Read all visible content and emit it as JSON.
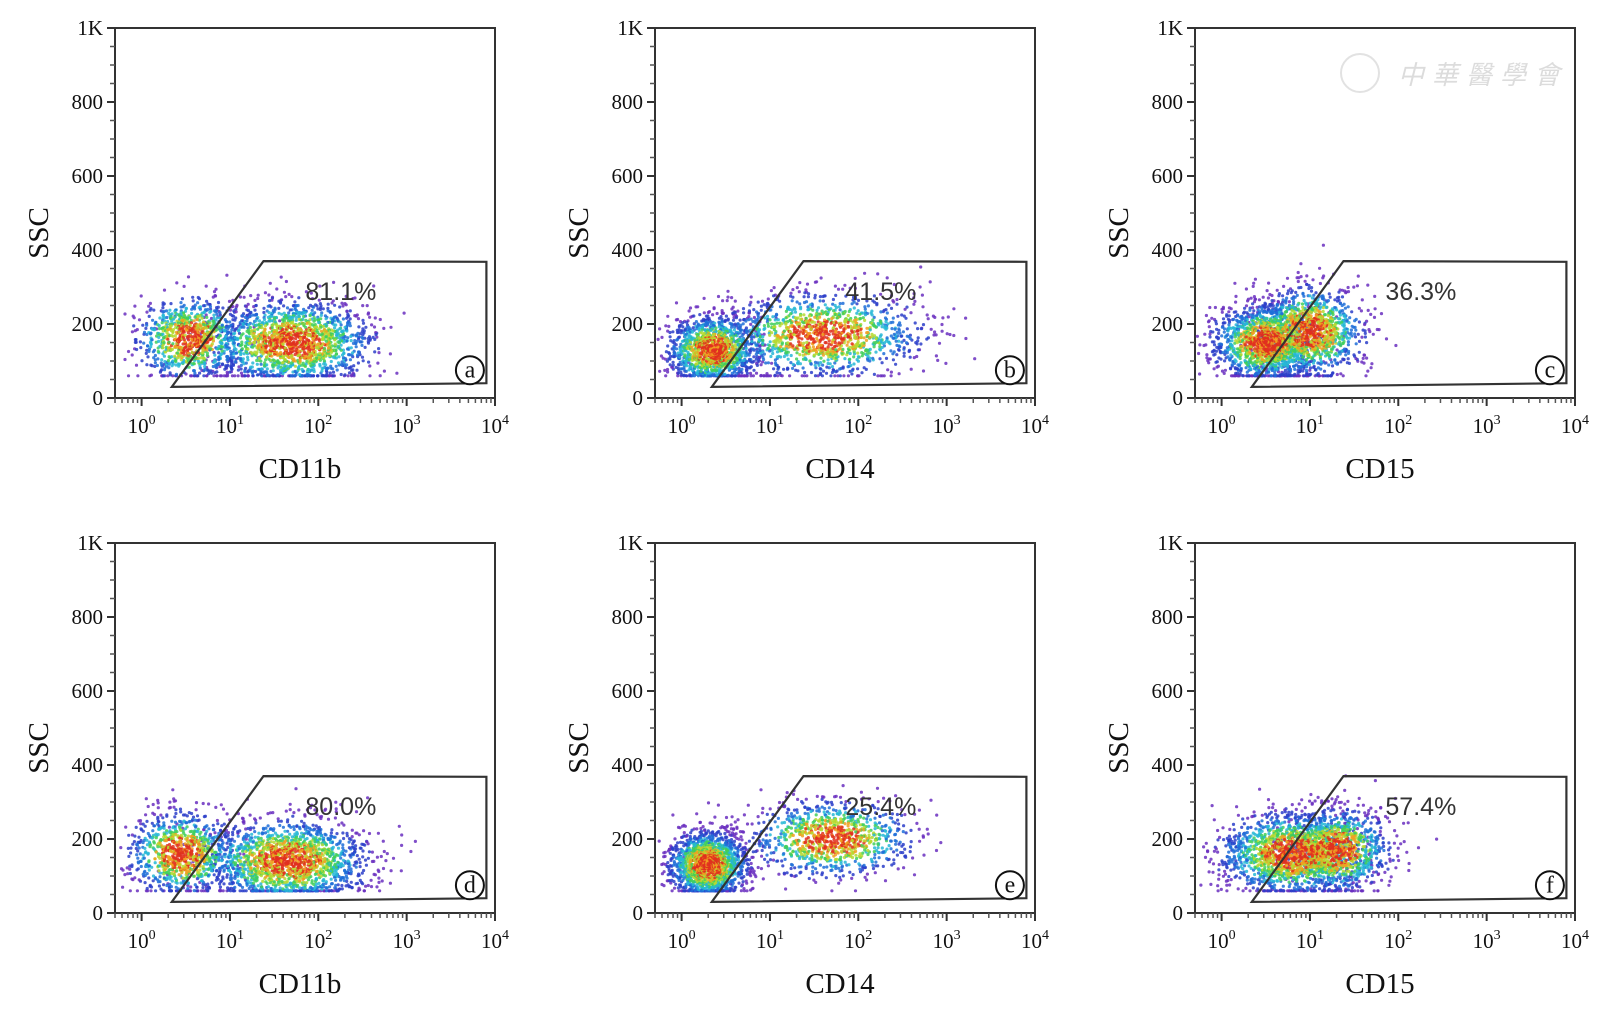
{
  "watermark": {
    "text": "中華醫學會",
    "icon": "society-seal-icon"
  },
  "chart_data": [
    {
      "type": "scatter",
      "panel_tag": "a",
      "xlabel": "CD11b",
      "ylabel": "SSC",
      "x_scale": "log",
      "xlim": [
        0.5,
        10000
      ],
      "ylim": [
        0,
        1000
      ],
      "x_tick_labels": [
        "10^0",
        "10^1",
        "10^2",
        "10^3",
        "10^4"
      ],
      "y_tick_labels": [
        "0",
        "200",
        "400",
        "600",
        "800",
        "1K"
      ],
      "gate": {
        "polygon": [
          [
            2.2,
            30
          ],
          [
            24,
            370
          ],
          [
            8000,
            368
          ],
          [
            8000,
            40
          ]
        ],
        "percent_label": "81.1%",
        "percent": 81.1
      },
      "clusters": [
        {
          "center_log10_x": 1.7,
          "center_y": 150,
          "spread_log10_x": 0.45,
          "spread_y": 55,
          "weight": 0.65
        },
        {
          "center_log10_x": 0.55,
          "center_y": 160,
          "spread_log10_x": 0.3,
          "spread_y": 55,
          "weight": 0.35
        }
      ]
    },
    {
      "type": "scatter",
      "panel_tag": "b",
      "xlabel": "CD14",
      "ylabel": "SSC",
      "x_scale": "log",
      "xlim": [
        0.5,
        10000
      ],
      "ylim": [
        0,
        1000
      ],
      "x_tick_labels": [
        "10^0",
        "10^1",
        "10^2",
        "10^3",
        "10^4"
      ],
      "y_tick_labels": [
        "0",
        "200",
        "400",
        "600",
        "800",
        "1K"
      ],
      "gate": {
        "polygon": [
          [
            2.2,
            30
          ],
          [
            24,
            370
          ],
          [
            8000,
            368
          ],
          [
            8000,
            40
          ]
        ],
        "percent_label": "41.5%",
        "percent": 41.5
      },
      "clusters": [
        {
          "center_log10_x": 0.35,
          "center_y": 130,
          "spread_log10_x": 0.25,
          "spread_y": 45,
          "weight": 0.5
        },
        {
          "center_log10_x": 1.6,
          "center_y": 170,
          "spread_log10_x": 0.55,
          "spread_y": 55,
          "weight": 0.5
        }
      ]
    },
    {
      "type": "scatter",
      "panel_tag": "c",
      "xlabel": "CD15",
      "ylabel": "SSC",
      "x_scale": "log",
      "xlim": [
        0.5,
        10000
      ],
      "ylim": [
        0,
        1000
      ],
      "x_tick_labels": [
        "10^0",
        "10^1",
        "10^2",
        "10^3",
        "10^4"
      ],
      "y_tick_labels": [
        "0",
        "200",
        "400",
        "600",
        "800",
        "1K"
      ],
      "gate": {
        "polygon": [
          [
            2.2,
            30
          ],
          [
            24,
            370
          ],
          [
            8000,
            368
          ],
          [
            8000,
            40
          ]
        ],
        "percent_label": "36.3%",
        "percent": 36.3
      },
      "clusters": [
        {
          "center_log10_x": 0.5,
          "center_y": 150,
          "spread_log10_x": 0.3,
          "spread_y": 50,
          "weight": 0.55
        },
        {
          "center_log10_x": 1.0,
          "center_y": 180,
          "spread_log10_x": 0.3,
          "spread_y": 60,
          "weight": 0.45
        }
      ]
    },
    {
      "type": "scatter",
      "panel_tag": "d",
      "xlabel": "CD11b",
      "ylabel": "SSC",
      "x_scale": "log",
      "xlim": [
        0.5,
        10000
      ],
      "ylim": [
        0,
        1000
      ],
      "x_tick_labels": [
        "10^0",
        "10^1",
        "10^2",
        "10^3",
        "10^4"
      ],
      "y_tick_labels": [
        "0",
        "200",
        "400",
        "600",
        "800",
        "1K"
      ],
      "gate": {
        "polygon": [
          [
            2.2,
            30
          ],
          [
            24,
            370
          ],
          [
            8000,
            368
          ],
          [
            8000,
            40
          ]
        ],
        "percent_label": "80.0%",
        "percent": 80.0
      },
      "clusters": [
        {
          "center_log10_x": 1.65,
          "center_y": 140,
          "spread_log10_x": 0.45,
          "spread_y": 55,
          "weight": 0.65
        },
        {
          "center_log10_x": 0.45,
          "center_y": 160,
          "spread_log10_x": 0.3,
          "spread_y": 55,
          "weight": 0.35
        }
      ]
    },
    {
      "type": "scatter",
      "panel_tag": "e",
      "xlabel": "CD14",
      "ylabel": "SSC",
      "x_scale": "log",
      "xlim": [
        0.5,
        10000
      ],
      "ylim": [
        0,
        1000
      ],
      "x_tick_labels": [
        "10^0",
        "10^1",
        "10^2",
        "10^3",
        "10^4"
      ],
      "y_tick_labels": [
        "0",
        "200",
        "400",
        "600",
        "800",
        "1K"
      ],
      "gate": {
        "polygon": [
          [
            2.2,
            30
          ],
          [
            24,
            370
          ],
          [
            8000,
            368
          ],
          [
            8000,
            40
          ]
        ],
        "percent_label": "25.4%",
        "percent": 25.4
      },
      "clusters": [
        {
          "center_log10_x": 0.3,
          "center_y": 130,
          "spread_log10_x": 0.22,
          "spread_y": 45,
          "weight": 0.62
        },
        {
          "center_log10_x": 1.7,
          "center_y": 200,
          "spread_log10_x": 0.45,
          "spread_y": 50,
          "weight": 0.38
        }
      ]
    },
    {
      "type": "scatter",
      "panel_tag": "f",
      "xlabel": "CD15",
      "ylabel": "SSC",
      "x_scale": "log",
      "xlim": [
        0.5,
        10000
      ],
      "ylim": [
        0,
        1000
      ],
      "x_tick_labels": [
        "10^0",
        "10^1",
        "10^2",
        "10^3",
        "10^4"
      ],
      "y_tick_labels": [
        "0",
        "200",
        "400",
        "600",
        "800",
        "1K"
      ],
      "gate": {
        "polygon": [
          [
            2.2,
            30
          ],
          [
            24,
            370
          ],
          [
            8000,
            368
          ],
          [
            8000,
            40
          ]
        ],
        "percent_label": "57.4%",
        "percent": 57.4
      },
      "clusters": [
        {
          "center_log10_x": 0.8,
          "center_y": 160,
          "spread_log10_x": 0.4,
          "spread_y": 55,
          "weight": 0.6
        },
        {
          "center_log10_x": 1.3,
          "center_y": 170,
          "spread_log10_x": 0.3,
          "spread_y": 55,
          "weight": 0.4
        }
      ]
    }
  ],
  "density_colors": [
    "#6a2fbf",
    "#2b3ec9",
    "#1f6fd8",
    "#26b7d6",
    "#3fcf5a",
    "#b5d930",
    "#f0a020",
    "#e0301e"
  ]
}
